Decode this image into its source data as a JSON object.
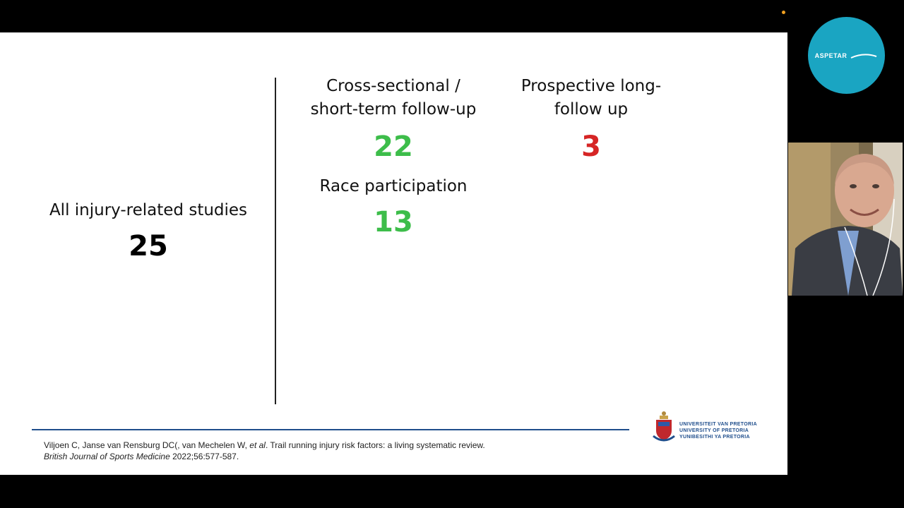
{
  "slide": {
    "all_studies": {
      "label": "All injury-related studies",
      "value": "25"
    },
    "cross_sectional": {
      "label_line1": "Cross-sectional /",
      "label_line2": "short-term follow-up",
      "value": "22"
    },
    "prospective": {
      "label_line1": "Prospective long-",
      "label_line2": "follow up",
      "value": "3"
    },
    "race": {
      "label": "Race participation",
      "value": "13"
    }
  },
  "citation": {
    "authors": "Viljoen C, Janse van Rensburg DC(, van Mechelen W, ",
    "et_al": "et al",
    "title": ". Trail running injury risk factors: a living systematic review.",
    "journal": "British Journal of Sports Medicine",
    "ref": " 2022;56:577-587."
  },
  "university_logo": {
    "line1": "UNIVERSITEIT VAN PRETORIA",
    "line2": "UNIVERSITY OF PRETORIA",
    "line3": "YUNIBESITHI YA PRETORIA"
  },
  "aspetar_logo": {
    "text": "ASPETAR"
  },
  "colors": {
    "green": "#3dbd4a",
    "red": "#d62525",
    "footer_line": "#1f4e8c",
    "aspetar": "#1aa5c2"
  },
  "icons": [
    "university-crest-icon",
    "aspetar-logo-icon",
    "recording-dot-icon"
  ]
}
